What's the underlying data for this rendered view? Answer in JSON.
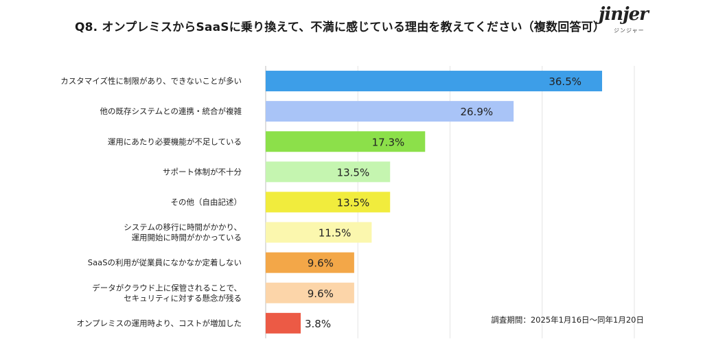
{
  "title": "Q8. オンプレミスからSaaSに乗り換えて、不満に感じている理由を教えてください（複数回答可）",
  "logo": {
    "main": "jinjer",
    "sub": "ジンジャー"
  },
  "period": "調査期間：2025年1月16日〜同年1月20日",
  "chart_data": {
    "type": "bar",
    "orientation": "horizontal",
    "grid": true,
    "xlim": [
      0,
      40
    ],
    "categories": [
      [
        "カスタマイズ性に制限があり、できないことが多い"
      ],
      [
        "他の既存システムとの連携・統合が複雑"
      ],
      [
        "運用にあたり必要機能が不足している"
      ],
      [
        "サポート体制が不十分"
      ],
      [
        "その他（自由記述）"
      ],
      [
        "システムの移行に時間がかかり、",
        "運用開始に時間がかかっている"
      ],
      [
        "SaaSの利用が従業員になかなか定着しない"
      ],
      [
        "データがクラウド上に保管されることで、",
        "セキュリティに対する懸念が残る"
      ],
      [
        "オンプレミスの運用時より、コストが増加した"
      ]
    ],
    "values": [
      36.5,
      26.9,
      17.3,
      13.5,
      13.5,
      11.5,
      9.6,
      9.6,
      3.8
    ],
    "value_labels": [
      "36.5%",
      "26.9%",
      "17.3%",
      "13.5%",
      "13.5%",
      "11.5%",
      "9.6%",
      "9.6%",
      "3.8%"
    ],
    "colors": [
      "#3d9ee8",
      "#a9c4f7",
      "#8ce04a",
      "#c5f5b0",
      "#f1ec3d",
      "#fbf7ae",
      "#f3a748",
      "#fcd5a9",
      "#ec5a45"
    ]
  }
}
